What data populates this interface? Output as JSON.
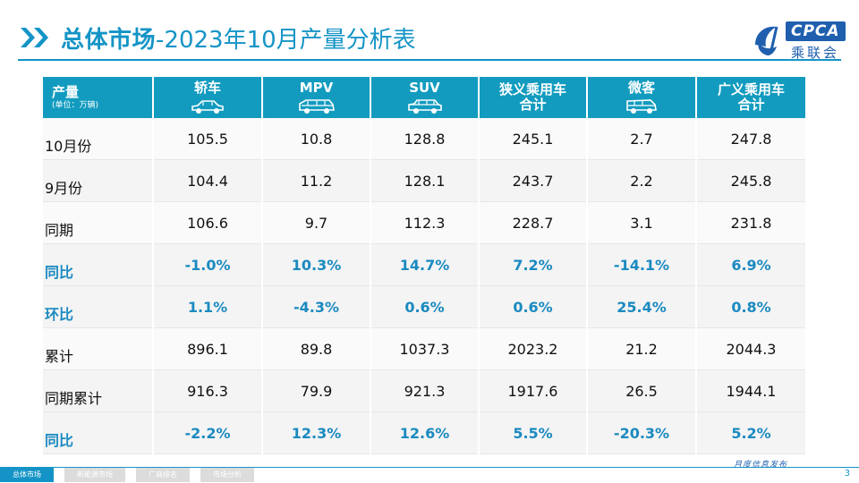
{
  "header": {
    "title_bold": "总体市场",
    "title_rest": "-2023年10月产量分析表"
  },
  "logo": {
    "text": "CPCA",
    "sub": "乘联会"
  },
  "table": {
    "corner": {
      "label": "产量",
      "unit": "(单位：万辆)"
    },
    "columns": [
      {
        "label": "轿车",
        "icon": "sedan-icon"
      },
      {
        "label": "MPV",
        "icon": "mpv-icon"
      },
      {
        "label": "SUV",
        "icon": "suv-icon"
      },
      {
        "label": "狭义乘用车\n合计",
        "line1": "狭义乘用车",
        "line2": "合计"
      },
      {
        "label": "微客",
        "icon": "minivan-icon"
      },
      {
        "label": "广义乘用车\n合计",
        "line1": "广义乘用车",
        "line2": "合计"
      }
    ],
    "rows": [
      {
        "label": "10月份",
        "type": "value",
        "values": [
          "105.5",
          "10.8",
          "128.8",
          "245.1",
          "2.7",
          "247.8"
        ]
      },
      {
        "label": "9月份",
        "type": "value",
        "values": [
          "104.4",
          "11.2",
          "128.1",
          "243.7",
          "2.2",
          "245.8"
        ]
      },
      {
        "label": "同期",
        "type": "value",
        "values": [
          "106.6",
          "9.7",
          "112.3",
          "228.7",
          "3.1",
          "231.8"
        ]
      },
      {
        "label": "同比",
        "type": "pct",
        "values": [
          "-1.0%",
          "10.3%",
          "14.7%",
          "7.2%",
          "-14.1%",
          "6.9%"
        ]
      },
      {
        "label": "环比",
        "type": "pct",
        "values": [
          "1.1%",
          "-4.3%",
          "0.6%",
          "0.6%",
          "25.4%",
          "0.8%"
        ]
      },
      {
        "label": "累计",
        "type": "value",
        "values": [
          "896.1",
          "89.8",
          "1037.3",
          "2023.2",
          "21.2",
          "2044.3"
        ]
      },
      {
        "label": "同期累计",
        "type": "value",
        "values": [
          "916.3",
          "79.9",
          "921.3",
          "1917.6",
          "26.5",
          "1944.1"
        ]
      },
      {
        "label": "同比",
        "type": "pct",
        "values": [
          "-2.2%",
          "12.3%",
          "12.6%",
          "5.5%",
          "-20.3%",
          "5.2%"
        ]
      }
    ]
  },
  "footer": {
    "tabs": [
      "总体市场",
      "新能源市场",
      "厂商排名",
      "市场分析"
    ],
    "note": "月度信息发布",
    "page": "3"
  },
  "colors": {
    "accent": "#1494c6",
    "header_bg": "#129bbf",
    "pct_text": "#1b8ac0",
    "logo_blue": "#1f5fae"
  }
}
